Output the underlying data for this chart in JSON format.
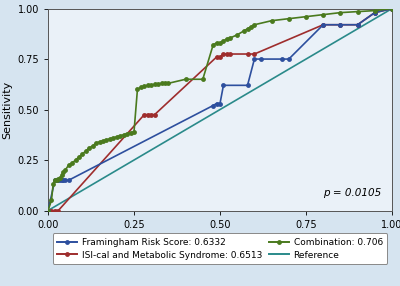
{
  "xlabel": "1-Specificity",
  "ylabel": "Sensitivity",
  "xlim": [
    0.0,
    1.0
  ],
  "ylim": [
    0.0,
    1.0
  ],
  "xticks": [
    0.0,
    0.25,
    0.5,
    0.75,
    1.0
  ],
  "yticks": [
    0.0,
    0.25,
    0.5,
    0.75,
    1.0
  ],
  "p_text": "p = 0.0105",
  "background_color": "#d6e4f0",
  "plot_background": "#eaf1f8",
  "framingham_color": "#2d4f9e",
  "framingham_label": "Framingham Risk Score: 0.6332",
  "framingham_x": [
    0.0,
    0.02,
    0.025,
    0.03,
    0.035,
    0.04,
    0.045,
    0.05,
    0.06,
    0.48,
    0.49,
    0.5,
    0.51,
    0.58,
    0.6,
    0.62,
    0.68,
    0.7,
    0.8,
    0.85,
    0.9,
    0.95,
    1.0
  ],
  "framingham_y": [
    0.0,
    0.15,
    0.15,
    0.15,
    0.15,
    0.15,
    0.15,
    0.15,
    0.15,
    0.52,
    0.53,
    0.53,
    0.62,
    0.62,
    0.75,
    0.75,
    0.75,
    0.75,
    0.92,
    0.92,
    0.92,
    0.98,
    1.0
  ],
  "isi_color": "#9e2d2d",
  "isi_label": "ISI-cal and Metabolic Syndrome: 0.6513",
  "isi_x": [
    0.0,
    0.01,
    0.02,
    0.03,
    0.28,
    0.29,
    0.3,
    0.31,
    0.49,
    0.5,
    0.51,
    0.52,
    0.53,
    0.58,
    0.6,
    0.8,
    0.85,
    0.9,
    0.95,
    1.0
  ],
  "isi_y": [
    0.0,
    0.0,
    0.0,
    0.0,
    0.475,
    0.475,
    0.475,
    0.475,
    0.76,
    0.76,
    0.775,
    0.775,
    0.775,
    0.775,
    0.775,
    0.92,
    0.92,
    0.92,
    0.98,
    1.0
  ],
  "combo_color": "#4a7a1e",
  "combo_label": "Combination: 0.706",
  "combo_x": [
    0.0,
    0.01,
    0.015,
    0.02,
    0.025,
    0.03,
    0.035,
    0.04,
    0.045,
    0.05,
    0.06,
    0.07,
    0.08,
    0.09,
    0.1,
    0.11,
    0.12,
    0.13,
    0.14,
    0.15,
    0.16,
    0.17,
    0.18,
    0.19,
    0.2,
    0.21,
    0.22,
    0.23,
    0.24,
    0.25,
    0.26,
    0.27,
    0.28,
    0.29,
    0.3,
    0.31,
    0.32,
    0.33,
    0.34,
    0.35,
    0.4,
    0.45,
    0.48,
    0.49,
    0.5,
    0.51,
    0.52,
    0.53,
    0.55,
    0.57,
    0.58,
    0.59,
    0.6,
    0.65,
    0.7,
    0.75,
    0.8,
    0.85,
    0.9,
    0.95,
    1.0
  ],
  "combo_y": [
    0.0,
    0.05,
    0.13,
    0.15,
    0.15,
    0.155,
    0.16,
    0.175,
    0.19,
    0.2,
    0.225,
    0.235,
    0.25,
    0.265,
    0.28,
    0.295,
    0.31,
    0.32,
    0.335,
    0.34,
    0.345,
    0.35,
    0.355,
    0.36,
    0.365,
    0.37,
    0.375,
    0.38,
    0.385,
    0.39,
    0.6,
    0.61,
    0.615,
    0.62,
    0.62,
    0.625,
    0.625,
    0.63,
    0.63,
    0.63,
    0.65,
    0.65,
    0.82,
    0.83,
    0.83,
    0.84,
    0.85,
    0.855,
    0.87,
    0.89,
    0.9,
    0.91,
    0.92,
    0.94,
    0.95,
    0.96,
    0.97,
    0.98,
    0.985,
    0.99,
    1.0
  ],
  "ref_color": "#2a8a8a",
  "ref_label": "Reference",
  "marker_size": 3.5,
  "linewidth": 1.2,
  "tick_fontsize": 7,
  "label_fontsize": 8,
  "legend_fontsize": 6.5
}
